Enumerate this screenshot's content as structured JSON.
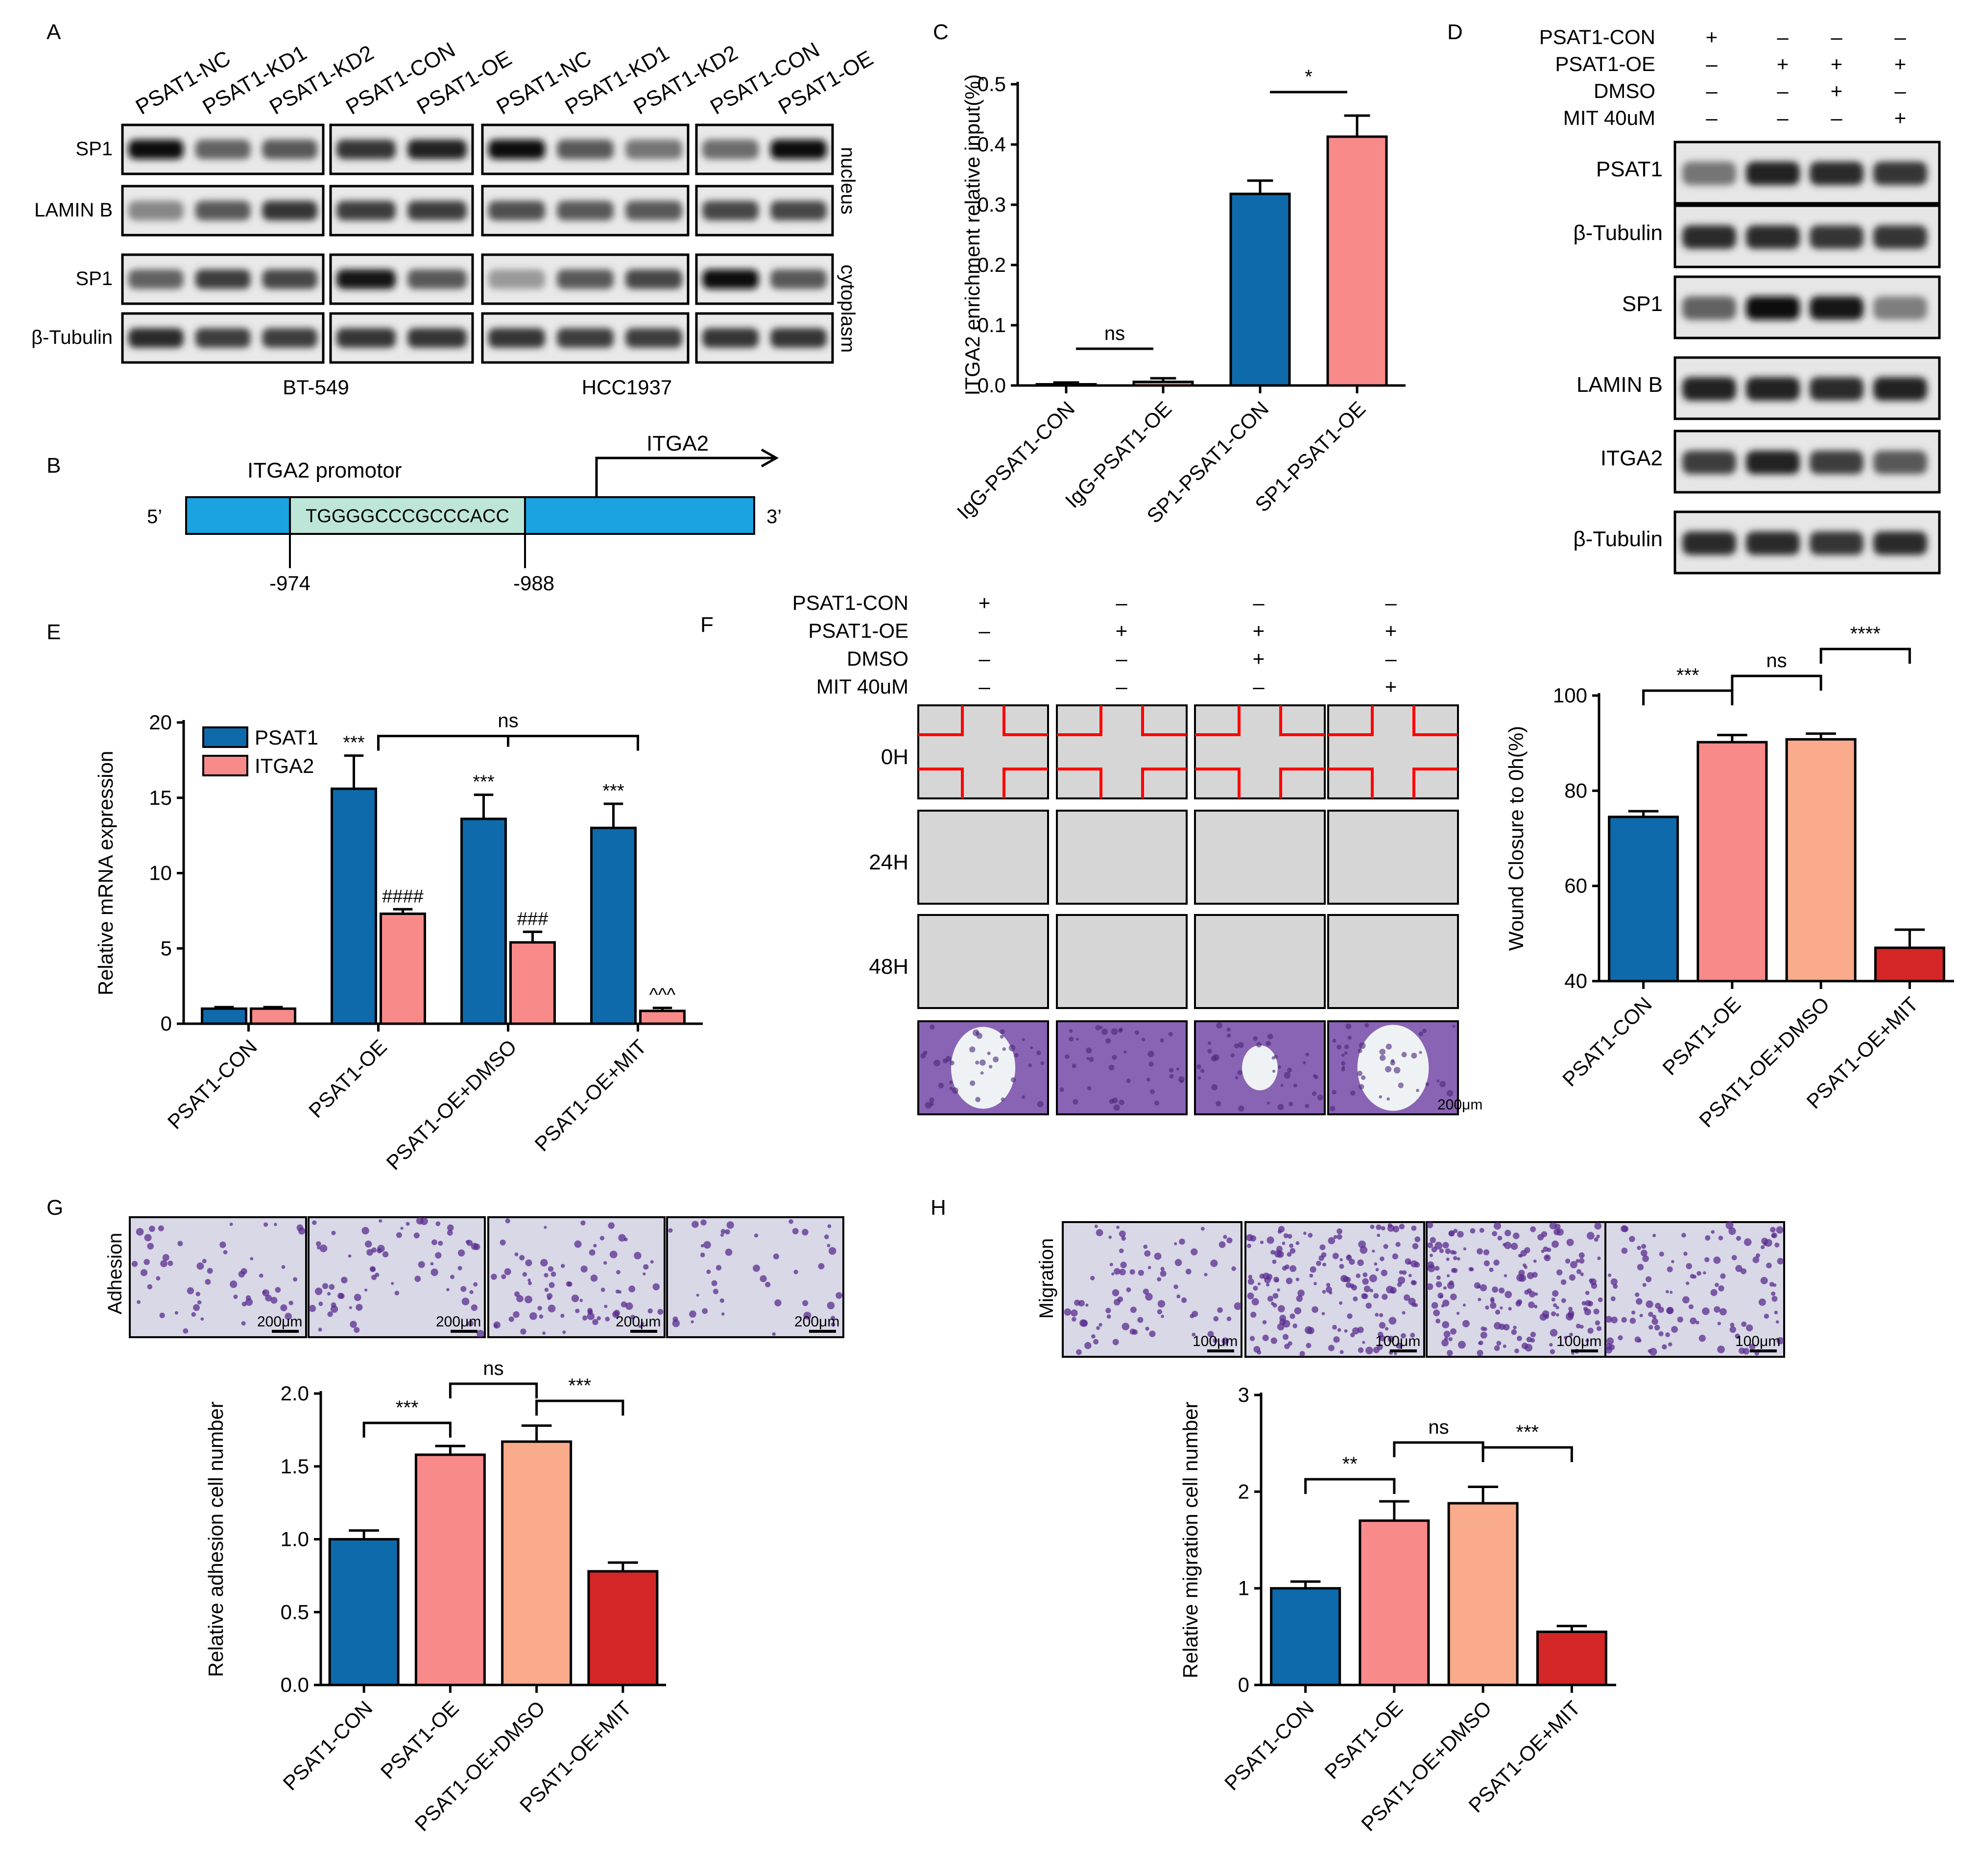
{
  "colors": {
    "blue": "#0e6aab",
    "pink": "#f88a8a",
    "peach": "#f9ab8c",
    "red": "#d42626",
    "promoter_bar": "#1aa3e0",
    "motif_box": "#bde6d8",
    "wound_line": "#ff0000",
    "stain": "#6e3aa0",
    "scratch_bg": "#cfcfcf"
  },
  "panels": {
    "A": "A",
    "B": "B",
    "C": "C",
    "D": "D",
    "E": "E",
    "F": "F",
    "G": "G",
    "H": "H"
  },
  "panelA": {
    "lanes_left": [
      "PSAT1-NC",
      "PSAT1-KD1",
      "PSAT1-KD2",
      "PSAT1-CON",
      "PSAT1-OE"
    ],
    "lanes_right": [
      "PSAT1-NC",
      "PSAT1-KD1",
      "PSAT1-KD2",
      "PSAT1-CON",
      "PSAT1-OE"
    ],
    "rows": [
      "SP1",
      "LAMIN B",
      "SP1",
      "β-Tubulin"
    ],
    "fractions": [
      "nucleus",
      "cytoplasm"
    ],
    "cell_lines": [
      "BT-549",
      "HCC1937"
    ]
  },
  "panelB": {
    "promoter_label": "ITGA2 promotor",
    "gene_label": "ITGA2",
    "five_prime": "5’",
    "three_prime": "3’",
    "motif": "TGGGGCCCGCCCACC",
    "pos_left": "-974",
    "pos_right": "-988"
  },
  "panelD": {
    "conditions": [
      {
        "label": "PSAT1-CON",
        "signs": [
          "+",
          "–",
          "–",
          "–"
        ]
      },
      {
        "label": "PSAT1-OE",
        "signs": [
          "–",
          "+",
          "+",
          "+"
        ]
      },
      {
        "label": "DMSO",
        "signs": [
          "–",
          "–",
          "+",
          "–"
        ]
      },
      {
        "label": "MIT 40uM",
        "signs": [
          "–",
          "–",
          "–",
          "+"
        ]
      }
    ],
    "rows": [
      "PSAT1",
      "β-Tubulin",
      "SP1",
      "LAMIN B",
      "ITGA2",
      "β-Tubulin"
    ]
  },
  "panelF": {
    "conditions": [
      {
        "label": "PSAT1-CON",
        "signs": [
          "+",
          "–",
          "–",
          "–"
        ]
      },
      {
        "label": "PSAT1-OE",
        "signs": [
          "–",
          "+",
          "+",
          "+"
        ]
      },
      {
        "label": "DMSO",
        "signs": [
          "–",
          "–",
          "+",
          "–"
        ]
      },
      {
        "label": "MIT 40uM",
        "signs": [
          "–",
          "–",
          "–",
          "+"
        ]
      }
    ],
    "time_rows": [
      "0H",
      "24H",
      "48H"
    ],
    "scale_bar": "200μm"
  },
  "panelG": {
    "row_label": "Adhesion",
    "scale_bars": [
      "200μm",
      "200μm",
      "200μm",
      "200μm"
    ]
  },
  "panelH": {
    "row_label": "Migration",
    "scale_bars": [
      "100μm",
      "100μm",
      "100μm",
      "100μm"
    ]
  },
  "chart_data": [
    {
      "id": "C",
      "type": "bar",
      "categories": [
        "IgG-PSAT1-CON",
        "IgG-PSAT1-OE",
        "SP1-PSAT1-CON",
        "SP1-PSAT1-OE"
      ],
      "values": [
        0.002,
        0.006,
        0.318,
        0.413
      ],
      "errors": [
        0.003,
        0.006,
        0.022,
        0.035
      ],
      "colors": [
        "#0e6aab",
        "#f88a8a",
        "#0e6aab",
        "#f88a8a"
      ],
      "ylabel": "ITGA2 enrichment relative input(%)",
      "ylim": [
        0,
        0.5
      ],
      "yticks": [
        "0.0",
        "0.1",
        "0.2",
        "0.3",
        "0.4",
        "0.5"
      ],
      "annotations": [
        {
          "from": 0,
          "to": 1,
          "text": "ns",
          "style": "line"
        },
        {
          "from": 2,
          "to": 3,
          "text": "*",
          "style": "line"
        }
      ]
    },
    {
      "id": "E",
      "type": "bar",
      "categories": [
        "PSAT1-CON",
        "PSAT1-OE",
        "PSAT1-OE+DMSO",
        "PSAT1-OE+MIT"
      ],
      "series": [
        {
          "name": "PSAT1",
          "values": [
            1.0,
            15.6,
            13.6,
            13.0
          ],
          "errors": [
            0.1,
            2.2,
            1.6,
            1.6
          ],
          "marks": [
            "",
            "***",
            "***",
            "***"
          ],
          "color": "#0e6aab"
        },
        {
          "name": "ITGA2",
          "values": [
            1.0,
            7.3,
            5.4,
            0.85
          ],
          "errors": [
            0.1,
            0.3,
            0.7,
            0.2
          ],
          "marks": [
            "",
            "####",
            "###",
            "^^^"
          ],
          "color": "#f88a8a"
        }
      ],
      "ylabel": "Relative mRNA expression",
      "ylim": [
        0,
        20
      ],
      "yticks": [
        "0",
        "5",
        "10",
        "15",
        "20"
      ],
      "annotations": [
        {
          "from": 1,
          "to": 3,
          "text": "ns",
          "style": "bracket"
        }
      ],
      "legend": "top-left"
    },
    {
      "id": "F",
      "type": "bar",
      "categories": [
        "PSAT1-CON",
        "PSAT1-OE",
        "PSAT1-OE+DMSO",
        "PSAT1-OE+MIT"
      ],
      "values": [
        74.5,
        90.2,
        90.8,
        47.0
      ],
      "errors": [
        1.2,
        1.5,
        1.2,
        3.8
      ],
      "colors": [
        "#0e6aab",
        "#f88a8a",
        "#f9ab8c",
        "#d42626"
      ],
      "ylabel": "Wound Closure to 0h(%)",
      "ylim": [
        40,
        100
      ],
      "yticks": [
        "40",
        "60",
        "80",
        "100"
      ],
      "annotations": [
        {
          "from": 0,
          "to": 1,
          "text": "***",
          "style": "bracket"
        },
        {
          "from": 1,
          "to": 2,
          "text": "ns",
          "style": "bracket"
        },
        {
          "from": 2,
          "to": 3,
          "text": "****",
          "style": "bracket"
        }
      ]
    },
    {
      "id": "G",
      "type": "bar",
      "categories": [
        "PSAT1-CON",
        "PSAT1-OE",
        "PSAT1-OE+DMSO",
        "PSAT1-OE+MIT"
      ],
      "values": [
        1.0,
        1.58,
        1.67,
        0.78
      ],
      "errors": [
        0.06,
        0.06,
        0.11,
        0.06
      ],
      "colors": [
        "#0e6aab",
        "#f88a8a",
        "#f9ab8c",
        "#d42626"
      ],
      "ylabel": "Relative adhesion cell number",
      "ylim": [
        0,
        2.0
      ],
      "yticks": [
        "0.0",
        "0.5",
        "1.0",
        "1.5",
        "2.0"
      ],
      "annotations": [
        {
          "from": 0,
          "to": 1,
          "text": "***",
          "style": "bracket"
        },
        {
          "from": 1,
          "to": 2,
          "text": "ns",
          "style": "bracket"
        },
        {
          "from": 2,
          "to": 3,
          "text": "***",
          "style": "bracket"
        }
      ]
    },
    {
      "id": "H",
      "type": "bar",
      "categories": [
        "PSAT1-CON",
        "PSAT1-OE",
        "PSAT1-OE+DMSO",
        "PSAT1-OE+MIT"
      ],
      "values": [
        1.0,
        1.7,
        1.88,
        0.55
      ],
      "errors": [
        0.07,
        0.2,
        0.17,
        0.06
      ],
      "colors": [
        "#0e6aab",
        "#f88a8a",
        "#f9ab8c",
        "#d42626"
      ],
      "ylabel": "Relative migration cell number",
      "ylim": [
        0,
        3
      ],
      "yticks": [
        "0",
        "1",
        "2",
        "3"
      ],
      "annotations": [
        {
          "from": 0,
          "to": 1,
          "text": "**",
          "style": "bracket"
        },
        {
          "from": 1,
          "to": 2,
          "text": "ns",
          "style": "bracket"
        },
        {
          "from": 2,
          "to": 3,
          "text": "***",
          "style": "bracket"
        }
      ]
    }
  ]
}
